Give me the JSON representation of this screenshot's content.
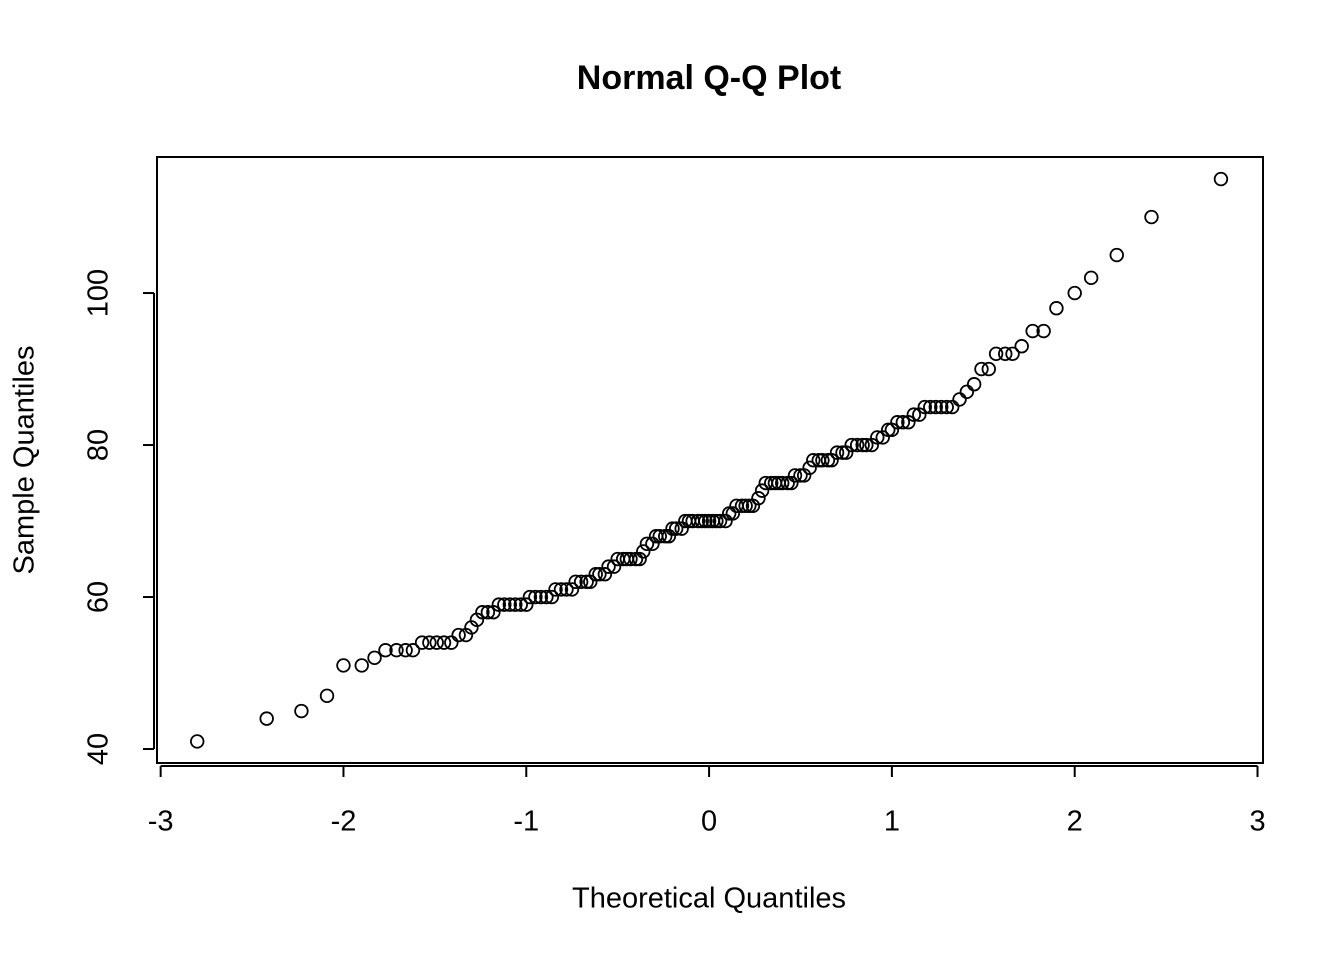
{
  "chart_data": {
    "type": "scatter",
    "title": "Normal Q-Q Plot",
    "x_label": "Theoretical Quantiles",
    "y_label": "Sample Quantiles",
    "x": [
      -2.8,
      -2.42,
      -2.23,
      -2.09,
      -2.0,
      -1.9,
      -1.83,
      -1.77,
      -1.71,
      -1.66,
      -1.62,
      -1.57,
      -1.53,
      -1.49,
      -1.45,
      -1.41,
      -1.37,
      -1.33,
      -1.3,
      -1.27,
      -1.24,
      -1.21,
      -1.18,
      -1.15,
      -1.12,
      -1.09,
      -1.06,
      -1.03,
      -1.0,
      -0.98,
      -0.95,
      -0.92,
      -0.89,
      -0.86,
      -0.84,
      -0.81,
      -0.78,
      -0.75,
      -0.73,
      -0.7,
      -0.67,
      -0.65,
      -0.62,
      -0.6,
      -0.57,
      -0.55,
      -0.52,
      -0.5,
      -0.47,
      -0.45,
      -0.43,
      -0.4,
      -0.38,
      -0.36,
      -0.34,
      -0.31,
      -0.29,
      -0.27,
      -0.24,
      -0.22,
      -0.2,
      -0.18,
      -0.15,
      -0.13,
      -0.11,
      -0.09,
      -0.06,
      -0.04,
      -0.02,
      0.0,
      0.02,
      0.04,
      0.06,
      0.09,
      0.11,
      0.13,
      0.15,
      0.18,
      0.2,
      0.22,
      0.24,
      0.27,
      0.29,
      0.31,
      0.34,
      0.36,
      0.38,
      0.4,
      0.43,
      0.45,
      0.47,
      0.5,
      0.52,
      0.55,
      0.57,
      0.6,
      0.62,
      0.65,
      0.67,
      0.7,
      0.73,
      0.75,
      0.78,
      0.81,
      0.84,
      0.86,
      0.89,
      0.92,
      0.95,
      0.98,
      1.0,
      1.03,
      1.06,
      1.09,
      1.12,
      1.15,
      1.18,
      1.21,
      1.24,
      1.27,
      1.3,
      1.33,
      1.37,
      1.41,
      1.45,
      1.49,
      1.53,
      1.57,
      1.62,
      1.66,
      1.71,
      1.77,
      1.83,
      1.9,
      2.0,
      2.09,
      2.23,
      2.42,
      2.8
    ],
    "y": [
      41,
      44,
      45,
      47,
      51,
      51,
      52,
      53,
      53,
      53,
      53,
      54,
      54,
      54,
      54,
      54,
      55,
      55,
      56,
      57,
      58,
      58,
      58,
      59,
      59,
      59,
      59,
      59,
      59,
      60,
      60,
      60,
      60,
      60,
      61,
      61,
      61,
      61,
      62,
      62,
      62,
      62,
      63,
      63,
      63,
      64,
      64,
      65,
      65,
      65,
      65,
      65,
      65,
      66,
      67,
      67,
      68,
      68,
      68,
      68,
      69,
      69,
      69,
      70,
      70,
      70,
      70,
      70,
      70,
      70,
      70,
      70,
      70,
      70,
      71,
      71,
      72,
      72,
      72,
      72,
      72,
      73,
      74,
      75,
      75,
      75,
      75,
      75,
      75,
      75,
      76,
      76,
      76,
      77,
      78,
      78,
      78,
      78,
      78,
      79,
      79,
      79,
      80,
      80,
      80,
      80,
      80,
      81,
      81,
      82,
      82,
      83,
      83,
      83,
      84,
      84,
      85,
      85,
      85,
      85,
      85,
      85,
      86,
      87,
      88,
      90,
      90,
      92,
      92,
      92,
      93,
      95,
      95,
      98,
      100,
      102,
      105,
      110,
      115
    ],
    "xlim": [
      -3.02,
      3.03
    ],
    "ylim": [
      38.16,
      117.9
    ],
    "xticks": [
      -3,
      -2,
      -1,
      0,
      1,
      2,
      3
    ],
    "yticks": [
      40,
      60,
      80,
      100
    ],
    "color": "#000000"
  }
}
